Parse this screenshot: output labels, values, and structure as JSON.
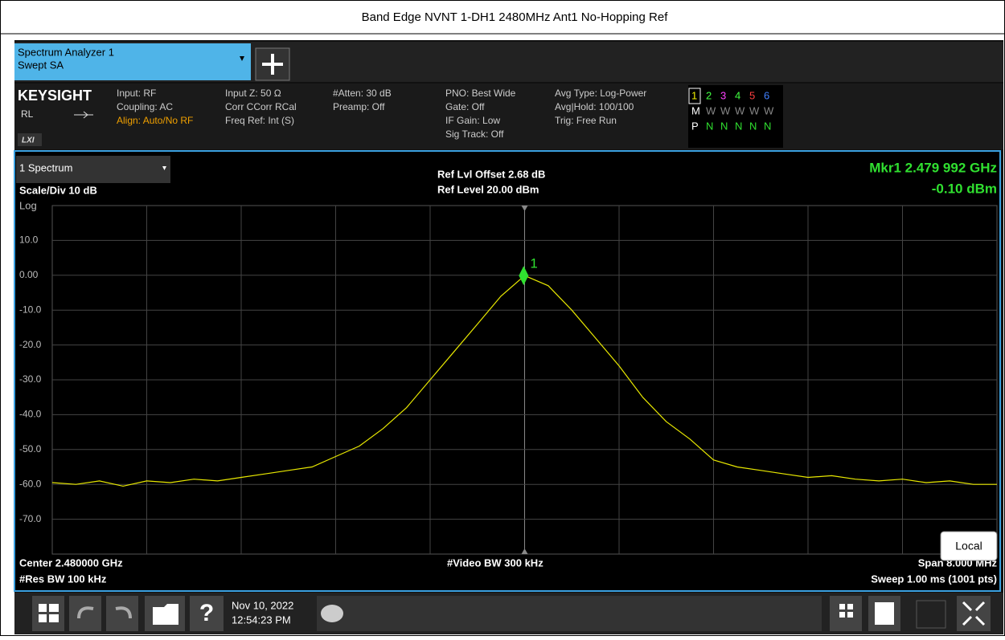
{
  "header": {
    "title": "Band Edge NVNT 1-DH1 2480MHz Ant1 No-Hopping Ref"
  },
  "tab": {
    "name": "Spectrum Analyzer 1",
    "mode": "Swept SA"
  },
  "info": {
    "brand": "KEYSIGHT",
    "rl": "RL",
    "lxi": "LXI",
    "columns": [
      [
        "Input: RF",
        "Coupling: AC",
        "Align: Auto/No RF"
      ],
      [
        "Input Z: 50 Ω",
        "Corr CCorr RCal",
        "Freq Ref: Int (S)"
      ],
      [
        "#Atten: 30 dB",
        "Preamp: Off"
      ],
      [
        "PNO: Best Wide",
        "Gate: Off",
        "IF Gain: Low",
        "Sig Track: Off"
      ],
      [
        "Avg Type: Log-Power",
        "Avg|Hold: 100/100",
        "Trig: Free Run"
      ]
    ],
    "traces": [
      [
        "1",
        "2",
        "3",
        "4",
        "5",
        "6"
      ],
      [
        "M",
        "W",
        "W",
        "W",
        "W",
        "W"
      ],
      [
        "P",
        "N",
        "N",
        "N",
        "N",
        "N"
      ]
    ],
    "trace_colors": [
      "#f0f000",
      "#40ff40",
      "#ff40ff",
      "#40ff40",
      "#ff4040",
      "#4080ff"
    ]
  },
  "plot": {
    "window": "1 Spectrum",
    "scale": "Scale/Div 10 dB",
    "log": "Log",
    "offset": "Ref Lvl Offset 2.68 dB",
    "ref": "Ref Level 20.00 dBm",
    "marker_label": "Mkr1  2.479 992 GHz",
    "marker_value": "-0.10 dBm",
    "marker_number": "1",
    "marker": {
      "x": 2.479992,
      "y": -0.1
    },
    "center": "Center 2.480000 GHz",
    "rbw": "#Res BW 100 kHz",
    "vbw": "#Video BW 300 kHz",
    "span": "Span 8.000 MHz",
    "sweep": "Sweep 1.00 ms (1001 pts)",
    "local": "Local",
    "xlim": [
      2.476,
      2.484
    ],
    "ylim": [
      -80,
      20
    ],
    "yticks": [
      {
        "value": 10,
        "label": "10.0"
      },
      {
        "value": 0,
        "label": "0.00"
      },
      {
        "value": -10,
        "label": "-10.0"
      },
      {
        "value": -20,
        "label": "-20.0"
      },
      {
        "value": -30,
        "label": "-30.0"
      },
      {
        "value": -40,
        "label": "-40.0"
      },
      {
        "value": -50,
        "label": "-50.0"
      },
      {
        "value": -60,
        "label": "-60.0"
      },
      {
        "value": -70,
        "label": "-70.0"
      }
    ],
    "trace": {
      "color": "#e8e800",
      "x": [
        2.476,
        2.4762,
        2.4764,
        2.4766,
        2.4768,
        2.477,
        2.4772,
        2.4774,
        2.4776,
        2.4778,
        2.478,
        2.4782,
        2.4784,
        2.4786,
        2.4788,
        2.479,
        2.4792,
        2.4794,
        2.4796,
        2.4798,
        2.48,
        2.4802,
        2.4804,
        2.4806,
        2.4808,
        2.481,
        2.4812,
        2.4814,
        2.4816,
        2.4818,
        2.482,
        2.4822,
        2.4824,
        2.4826,
        2.4828,
        2.483,
        2.4832,
        2.4834,
        2.4836,
        2.4838,
        2.484
      ],
      "values": [
        -59.5,
        -60,
        -59,
        -60.5,
        -59,
        -59.5,
        -58.5,
        -59,
        -58,
        -57,
        -56,
        -55,
        -52,
        -49,
        -44,
        -38,
        -30,
        -22,
        -14,
        -6,
        -0.1,
        -3,
        -10,
        -18,
        -26,
        -35,
        -42,
        -47,
        -53,
        -55,
        -56,
        -57,
        -58,
        -57.5,
        -58.5,
        -59,
        -58.5,
        -59.5,
        -59,
        -60,
        -60
      ]
    }
  },
  "taskbar": {
    "date": "Nov 10, 2022",
    "time": "12:54:23 PM"
  }
}
